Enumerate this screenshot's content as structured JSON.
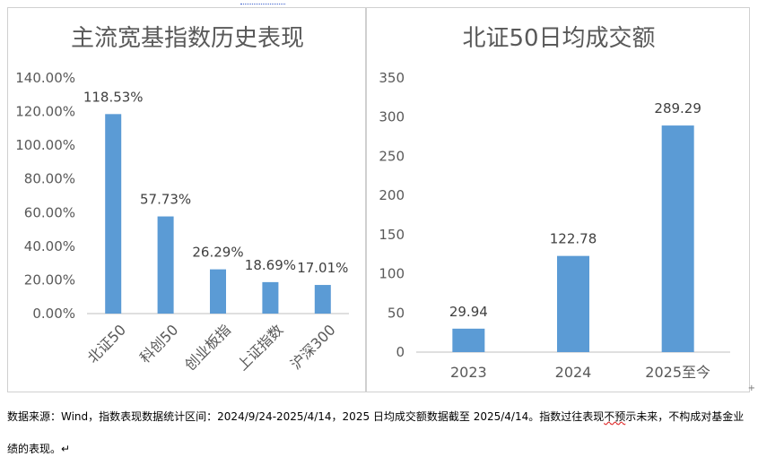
{
  "chart_data": [
    {
      "type": "bar",
      "title": "主流宽基指数历史表现",
      "categories": [
        "北证50",
        "科创50",
        "创业板指",
        "上证指数",
        "沪深300"
      ],
      "values": [
        118.53,
        57.73,
        26.29,
        18.69,
        17.01
      ],
      "value_labels": [
        "118.53%",
        "57.73%",
        "26.29%",
        "18.69%",
        "17.01%"
      ],
      "yticks": [
        "0.00%",
        "20.00%",
        "40.00%",
        "60.00%",
        "80.00%",
        "100.00%",
        "120.00%",
        "140.00%"
      ],
      "ylim": [
        0,
        140
      ],
      "grid": false,
      "color": "#5b9bd5"
    },
    {
      "type": "bar",
      "title": "北证50日均成交额",
      "categories": [
        "2023",
        "2024",
        "2025至今"
      ],
      "values": [
        29.94,
        122.78,
        289.29
      ],
      "value_labels": [
        "29.94",
        "122.78",
        "289.29"
      ],
      "yticks": [
        "0",
        "50",
        "100",
        "150",
        "200",
        "250",
        "300",
        "350"
      ],
      "ylim": [
        0,
        350
      ],
      "grid": false,
      "color": "#5b9bd5"
    }
  ],
  "source_note": {
    "part1": "数据来源：Wind，指数表现数据统计区间：2024/9/24-2025/4/14，2025 日均成交额数据截至 2025/4/14。指数过往表现",
    "underlined": "不预",
    "part2": "示未来，不构成对基金业绩的表现。",
    "para_mark": "↵",
    "corner_mark": "+"
  }
}
